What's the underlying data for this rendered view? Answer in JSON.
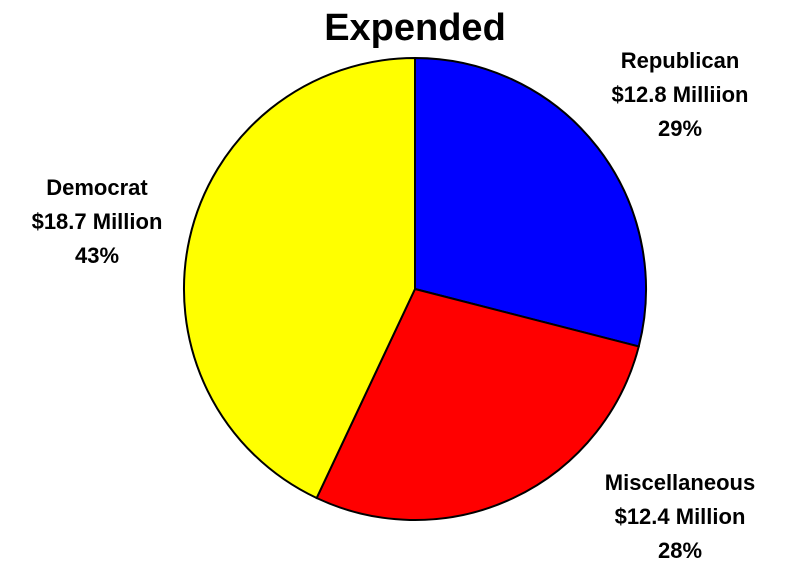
{
  "chart_data": {
    "type": "pie",
    "title": "Expended",
    "slices": [
      {
        "name": "Republican",
        "amount_label": "$12.8 Milliion",
        "percent_label": "29%",
        "value": 29,
        "color": "#0000FF"
      },
      {
        "name": "Miscellaneous",
        "amount_label": "$12.4 Million",
        "percent_label": "28%",
        "value": 28,
        "color": "#FF0000"
      },
      {
        "name": "Democrat",
        "amount_label": "$18.7 Million",
        "percent_label": "43%",
        "value": 43,
        "color": "#FFFF00"
      }
    ],
    "start_angle_deg": 0,
    "direction": "clockwise",
    "outline_color": "#000000"
  }
}
